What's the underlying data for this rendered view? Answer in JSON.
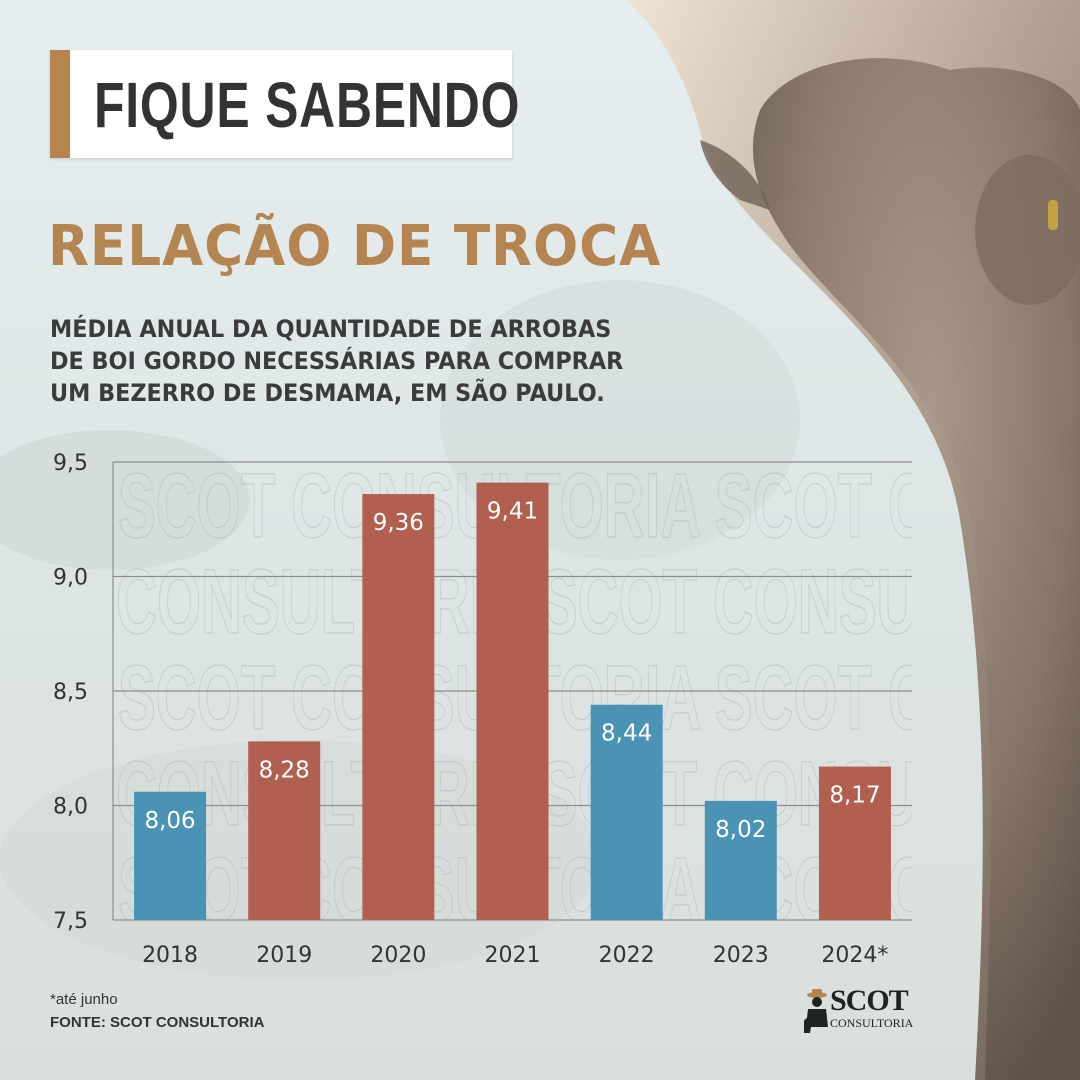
{
  "header": {
    "tag": "FIQUE SABENDO",
    "title": "RELAÇÃO DE TROCA"
  },
  "subtitle_lines": [
    "MÉDIA ANUAL DA QUANTIDADE DE ARROBAS",
    "DE BOI GORDO NECESSÁRIAS PARA COMPRAR",
    "UM BEZERRO DE DESMAMA, EM SÃO PAULO."
  ],
  "chart_data": {
    "type": "bar",
    "categories": [
      "2018",
      "2019",
      "2020",
      "2021",
      "2022",
      "2023",
      "2024*"
    ],
    "values": [
      8.06,
      8.28,
      9.36,
      9.41,
      8.44,
      8.02,
      8.17
    ],
    "value_labels": [
      "8,06",
      "8,28",
      "9,36",
      "9,41",
      "8,44",
      "8,02",
      "8,17"
    ],
    "bar_colors": [
      "#4b93b5",
      "#b15f4e",
      "#b15f4e",
      "#b15f4e",
      "#4b93b5",
      "#4b93b5",
      "#b15f4e"
    ],
    "ylim": [
      7.5,
      9.5
    ],
    "yticks": [
      7.5,
      8.0,
      8.5,
      9.0,
      9.5
    ],
    "ytick_labels": [
      "7,5",
      "8,0",
      "8,5",
      "9,0",
      "9,5"
    ],
    "grid": true,
    "watermark": "SCOT CONSULTORIA"
  },
  "footer": {
    "note": "*até junho",
    "source": "FONTE: SCOT CONSULTORIA"
  },
  "logo": {
    "name": "SCOT",
    "sub": "CONSULTORIA"
  },
  "colors": {
    "accent": "#b5854f",
    "blue_bar": "#4b93b5",
    "red_bar": "#b15f4e",
    "text": "#333333"
  }
}
